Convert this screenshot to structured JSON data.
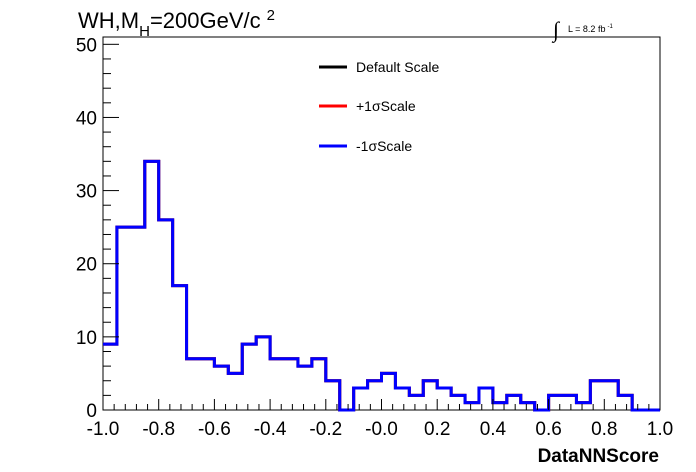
{
  "chart_data": {
    "type": "histogram",
    "title_main": "WH,M",
    "title_sub": "H",
    "title_rest": "=200GeV/c",
    "title_sup": "2",
    "lumi_integral": "∫",
    "lumi_text": "L = 8.2 fb",
    "lumi_sup": "-1",
    "xlabel": "DataNNScore",
    "ylabel": "",
    "xlim": [
      -1.0,
      1.0
    ],
    "ylim": [
      0,
      51
    ],
    "x_ticks": [
      "-1.0",
      "-0.8",
      "-0.6",
      "-0.4",
      "-0.2",
      "-0.0",
      "0.2",
      "0.4",
      "0.6",
      "0.8",
      "1.0"
    ],
    "x_tick_values": [
      -1.0,
      -0.8,
      -0.6,
      -0.4,
      -0.2,
      0.0,
      0.2,
      0.4,
      0.6,
      0.8,
      1.0
    ],
    "y_ticks": [
      "0",
      "10",
      "20",
      "30",
      "40",
      "50"
    ],
    "y_tick_values": [
      0,
      10,
      20,
      30,
      40,
      50
    ],
    "bin_width": 0.05,
    "bin_edges_start": -1.0,
    "legend_position": "top-center",
    "series": [
      {
        "name": "Default Scale",
        "color": "#000000",
        "values": [
          9,
          25,
          25,
          34,
          26,
          17,
          7,
          7,
          6,
          5,
          9,
          10,
          7,
          7,
          6,
          7,
          4,
          0,
          3,
          4,
          5,
          3,
          2,
          4,
          3,
          2,
          1,
          3,
          1,
          2,
          1,
          0,
          2,
          2,
          1,
          4,
          4,
          2,
          0,
          0
        ]
      },
      {
        "name": "+1σScale",
        "color": "#ff0000",
        "values": [
          9,
          25,
          25,
          34,
          26,
          17,
          7,
          7,
          6,
          5,
          9,
          10,
          7,
          7,
          6,
          7,
          4,
          0,
          3,
          4,
          5,
          3,
          2,
          4,
          3,
          2,
          1,
          3,
          1,
          2,
          1,
          0,
          2,
          2,
          1,
          4,
          4,
          2,
          0,
          0
        ]
      },
      {
        "name": "-1σScale",
        "color": "#0000ff",
        "values": [
          9,
          25,
          25,
          34,
          26,
          17,
          7,
          7,
          6,
          5,
          9,
          10,
          7,
          7,
          6,
          7,
          4,
          0,
          3,
          4,
          5,
          3,
          2,
          4,
          3,
          2,
          1,
          3,
          1,
          2,
          1,
          0,
          2,
          2,
          1,
          4,
          4,
          2,
          0,
          0
        ]
      }
    ]
  }
}
